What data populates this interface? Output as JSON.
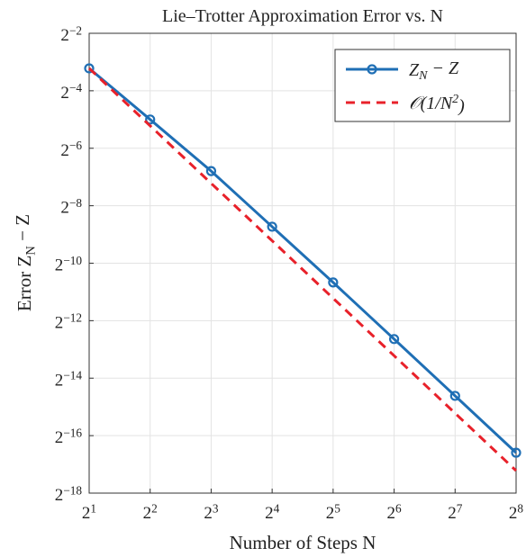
{
  "chart_data": {
    "type": "line",
    "title": "Lie–Trotter Approximation Error vs. N",
    "x_label": "Number of Steps N",
    "y_label": "Error Z_N − Z",
    "x": [
      2,
      4,
      8,
      16,
      32,
      64,
      128,
      256
    ],
    "series": [
      {
        "name": "Z_N − Z",
        "color": "#1f6fb5",
        "style": "solid",
        "marker": "circle",
        "values": [
          0.1073,
          0.03125,
          0.00901,
          0.002355,
          0.000614,
          0.0001567,
          3.98e-05,
          1.01e-05
        ]
      },
      {
        "name": "𝒪(1/N^2)",
        "color": "#e8212a",
        "style": "dashed",
        "marker": "none",
        "values": [
          0.1073,
          0.02683,
          0.006708,
          0.001677,
          0.0004192,
          0.0001048,
          2.62e-05,
          6.55e-06
        ]
      }
    ],
    "xscale": "log2",
    "yscale": "log2",
    "xlim": [
      2,
      256
    ],
    "ylim": [
      3.814697265625e-06,
      0.25
    ],
    "xticks": [
      {
        "value": 2,
        "label": "2^1"
      },
      {
        "value": 4,
        "label": "2^2"
      },
      {
        "value": 8,
        "label": "2^3"
      },
      {
        "value": 16,
        "label": "2^4"
      },
      {
        "value": 32,
        "label": "2^5"
      },
      {
        "value": 64,
        "label": "2^6"
      },
      {
        "value": 128,
        "label": "2^7"
      },
      {
        "value": 256,
        "label": "2^8"
      }
    ],
    "yticks": [
      {
        "value": 0.25,
        "label": "2^−2"
      },
      {
        "value": 0.0625,
        "label": "2^−4"
      },
      {
        "value": 0.015625,
        "label": "2^−6"
      },
      {
        "value": 0.00390625,
        "label": "2^−8"
      },
      {
        "value": 0.0009765625,
        "label": "2^−10"
      },
      {
        "value": 0.000244140625,
        "label": "2^−12"
      },
      {
        "value": 6.103515625e-05,
        "label": "2^−14"
      },
      {
        "value": 1.52587890625e-05,
        "label": "2^−16"
      },
      {
        "value": 3.814697265625e-06,
        "label": "2^−18"
      }
    ],
    "grid": true,
    "legend": "upper right"
  }
}
